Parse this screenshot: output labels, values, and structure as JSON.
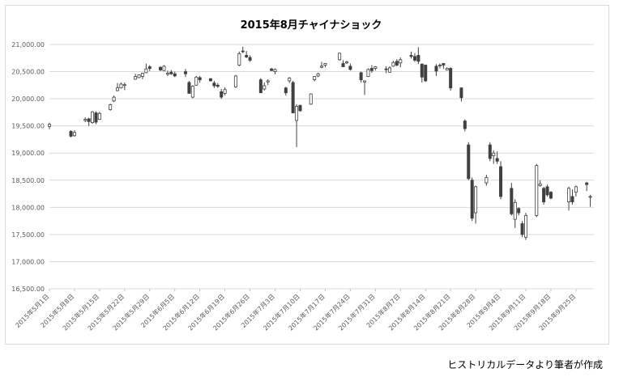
{
  "caption": "ヒストリカルデータより筆者が作成",
  "chart_data": {
    "type": "candlestick",
    "title": "2015年8月チャイナショック",
    "xlabel": "",
    "ylabel": "",
    "ylim": [
      16500,
      21000
    ],
    "yticks": [
      "16,500.00",
      "17,000.00",
      "17,500.00",
      "18,000.00",
      "18,500.00",
      "19,000.00",
      "19,500.00",
      "20,000.00",
      "20,500.00",
      "21,000.00"
    ],
    "xticks": [
      "2015年5月1日",
      "2015年5月8日",
      "2015年5月15日",
      "2015年5月22日",
      "2015年5月29日",
      "2015年6月5日",
      "2015年6月12日",
      "2015年6月19日",
      "2015年6月26日",
      "2015年7月3日",
      "2015年7月10日",
      "2015年7月17日",
      "2015年7月24日",
      "2015年7月31日",
      "2015年8月7日",
      "2015年8月14日",
      "2015年8月21日",
      "2015年8月28日",
      "2015年9月4日",
      "2015年9月11日",
      "2015年9月18日",
      "2015年9月25日"
    ],
    "x_start": "2015-05-01",
    "x_end": "2015-09-30",
    "grid": true,
    "legend": "none",
    "colors": {
      "up": "#ffffff",
      "down": "#404040",
      "edge": "#404040",
      "grid": "#d9d9d9"
    },
    "candles": [
      [
        "2015-05-01",
        19490,
        19560,
        19440,
        19530
      ],
      [
        "2015-05-07",
        19400,
        19420,
        19290,
        19310
      ],
      [
        "2015-05-08",
        19320,
        19420,
        19300,
        19380
      ],
      [
        "2015-05-11",
        19600,
        19660,
        19570,
        19620
      ],
      [
        "2015-05-12",
        19630,
        19650,
        19500,
        19580
      ],
      [
        "2015-05-13",
        19560,
        19770,
        19540,
        19760
      ],
      [
        "2015-05-14",
        19740,
        19770,
        19530,
        19570
      ],
      [
        "2015-05-15",
        19620,
        19760,
        19610,
        19730
      ],
      [
        "2015-05-18",
        19800,
        19910,
        19780,
        19890
      ],
      [
        "2015-05-19",
        19960,
        20060,
        19940,
        20030
      ],
      [
        "2015-05-20",
        20150,
        20290,
        20140,
        20200
      ],
      [
        "2015-05-21",
        20200,
        20300,
        20190,
        20270
      ],
      [
        "2015-05-22",
        20250,
        20300,
        20160,
        20260
      ],
      [
        "2015-05-25",
        20360,
        20460,
        20350,
        20410
      ],
      [
        "2015-05-26",
        20390,
        20450,
        20380,
        20440
      ],
      [
        "2015-05-27",
        20410,
        20480,
        20360,
        20470
      ],
      [
        "2015-05-28",
        20480,
        20650,
        20470,
        20550
      ],
      [
        "2015-05-29",
        20590,
        20620,
        20510,
        20560
      ],
      [
        "2015-06-01",
        20580,
        20600,
        20510,
        20530
      ],
      [
        "2015-06-02",
        20520,
        20620,
        20510,
        20600
      ],
      [
        "2015-06-03",
        20450,
        20520,
        20420,
        20470
      ],
      [
        "2015-06-04",
        20490,
        20530,
        20440,
        20460
      ],
      [
        "2015-06-05",
        20460,
        20500,
        20400,
        20420
      ],
      [
        "2015-06-08",
        20500,
        20550,
        20400,
        20460
      ],
      [
        "2015-06-09",
        20300,
        20330,
        20090,
        20100
      ],
      [
        "2015-06-10",
        20030,
        20250,
        20010,
        20230
      ],
      [
        "2015-06-11",
        20250,
        20420,
        20240,
        20400
      ],
      [
        "2015-06-12",
        20390,
        20420,
        20300,
        20350
      ],
      [
        "2015-06-15",
        20370,
        20380,
        20320,
        20330
      ],
      [
        "2015-06-16",
        20290,
        20330,
        20200,
        20240
      ],
      [
        "2015-06-17",
        20250,
        20290,
        20200,
        20230
      ],
      [
        "2015-06-18",
        20130,
        20180,
        20000,
        20030
      ],
      [
        "2015-06-19",
        20100,
        20210,
        20060,
        20170
      ],
      [
        "2015-06-22",
        20220,
        20440,
        20200,
        20420
      ],
      [
        "2015-06-23",
        20620,
        20870,
        20600,
        20830
      ],
      [
        "2015-06-24",
        20880,
        20960,
        20840,
        20870
      ],
      [
        "2015-06-25",
        20800,
        20880,
        20750,
        20770
      ],
      [
        "2015-06-26",
        20760,
        20800,
        20680,
        20710
      ],
      [
        "2015-06-29",
        20350,
        20380,
        20110,
        20110
      ],
      [
        "2015-06-30",
        20180,
        20300,
        20150,
        20240
      ],
      [
        "2015-07-01",
        20310,
        20360,
        20250,
        20330
      ],
      [
        "2015-07-02",
        20550,
        20570,
        20510,
        20520
      ],
      [
        "2015-07-03",
        20500,
        20560,
        20450,
        20540
      ],
      [
        "2015-07-06",
        20200,
        20220,
        20060,
        20110
      ],
      [
        "2015-07-07",
        20330,
        20400,
        20290,
        20380
      ],
      [
        "2015-07-08",
        20300,
        20330,
        19730,
        19740
      ],
      [
        "2015-07-09",
        19600,
        19900,
        19110,
        19860
      ],
      [
        "2015-07-10",
        19880,
        19890,
        19760,
        19780
      ],
      [
        "2015-07-13",
        19900,
        20100,
        19890,
        20090
      ],
      [
        "2015-07-14",
        20350,
        20420,
        20320,
        20410
      ],
      [
        "2015-07-15",
        20420,
        20480,
        20400,
        20460
      ],
      [
        "2015-07-16",
        20580,
        20680,
        20560,
        20600
      ],
      [
        "2015-07-17",
        20620,
        20660,
        20580,
        20650
      ],
      [
        "2015-07-21",
        20720,
        20850,
        20700,
        20840
      ],
      [
        "2015-07-22",
        20650,
        20710,
        20600,
        20590
      ],
      [
        "2015-07-23",
        20660,
        20700,
        20640,
        20680
      ],
      [
        "2015-07-24",
        20600,
        20650,
        20520,
        20540
      ],
      [
        "2015-07-27",
        20480,
        20500,
        20300,
        20350
      ],
      [
        "2015-07-28",
        20310,
        20330,
        20070,
        20330
      ],
      [
        "2015-07-29",
        20410,
        20560,
        20400,
        20540
      ],
      [
        "2015-07-30",
        20560,
        20620,
        20480,
        20520
      ],
      [
        "2015-07-31",
        20560,
        20600,
        20520,
        20590
      ],
      [
        "2015-08-03",
        20550,
        20600,
        20470,
        20540
      ],
      [
        "2015-08-04",
        20490,
        20600,
        20480,
        20570
      ],
      [
        "2015-08-05",
        20600,
        20700,
        20590,
        20670
      ],
      [
        "2015-08-06",
        20690,
        20730,
        20600,
        20620
      ],
      [
        "2015-08-07",
        20660,
        20760,
        20580,
        20720
      ],
      [
        "2015-08-10",
        20800,
        20870,
        20740,
        20780
      ],
      [
        "2015-08-11",
        20780,
        20840,
        20680,
        20710
      ],
      [
        "2015-08-12",
        20800,
        20950,
        20640,
        20690
      ],
      [
        "2015-08-13",
        20640,
        20650,
        20300,
        20400
      ],
      [
        "2015-08-14",
        20620,
        20630,
        20310,
        20330
      ],
      [
        "2015-08-17",
        20600,
        20640,
        20420,
        20510
      ],
      [
        "2015-08-18",
        20610,
        20650,
        20560,
        20620
      ],
      [
        "2015-08-19",
        20650,
        20660,
        20550,
        20620
      ],
      [
        "2015-08-20",
        20530,
        20580,
        20520,
        20560
      ],
      [
        "2015-08-21",
        20560,
        20580,
        20150,
        20200
      ],
      [
        "2015-08-24",
        20200,
        20210,
        19950,
        20020
      ],
      [
        "2015-08-25",
        19590,
        19620,
        19400,
        19450
      ],
      [
        "2015-08-26",
        19150,
        19200,
        18500,
        18530
      ],
      [
        "2015-08-27",
        18500,
        18550,
        17750,
        17800
      ],
      [
        "2015-08-28",
        17900,
        18400,
        17700,
        18380
      ],
      [
        "2015-08-31",
        18450,
        18600,
        18400,
        18550
      ],
      [
        "2015-09-01",
        19150,
        19200,
        18850,
        18900
      ],
      [
        "2015-09-02",
        18950,
        19050,
        18800,
        19000
      ],
      [
        "2015-09-03",
        18900,
        19030,
        18800,
        18850
      ],
      [
        "2015-09-04",
        18750,
        18850,
        18150,
        18200
      ],
      [
        "2015-09-07",
        18350,
        18450,
        17850,
        17880
      ],
      [
        "2015-09-08",
        17780,
        18150,
        17620,
        18090
      ],
      [
        "2015-09-09",
        17980,
        18000,
        17850,
        17900
      ],
      [
        "2015-09-10",
        17700,
        17750,
        17450,
        17500
      ],
      [
        "2015-09-11",
        17450,
        17900,
        17400,
        17850
      ],
      [
        "2015-09-14",
        17850,
        18800,
        17820,
        18770
      ],
      [
        "2015-09-15",
        18400,
        18500,
        18380,
        18430
      ],
      [
        "2015-09-16",
        18350,
        18380,
        18050,
        18100
      ],
      [
        "2015-09-17",
        18380,
        18420,
        18200,
        18230
      ],
      [
        "2015-09-18",
        18280,
        18300,
        18150,
        18170
      ],
      [
        "2015-09-23",
        18100,
        18380,
        17940,
        18350
      ],
      [
        "2015-09-24",
        18200,
        18330,
        18050,
        18100
      ],
      [
        "2015-09-25",
        18280,
        18400,
        18200,
        18380
      ],
      [
        "2015-09-28",
        18450,
        18470,
        18300,
        18420
      ],
      [
        "2015-09-29",
        18200,
        18230,
        18010,
        18200
      ]
    ]
  }
}
